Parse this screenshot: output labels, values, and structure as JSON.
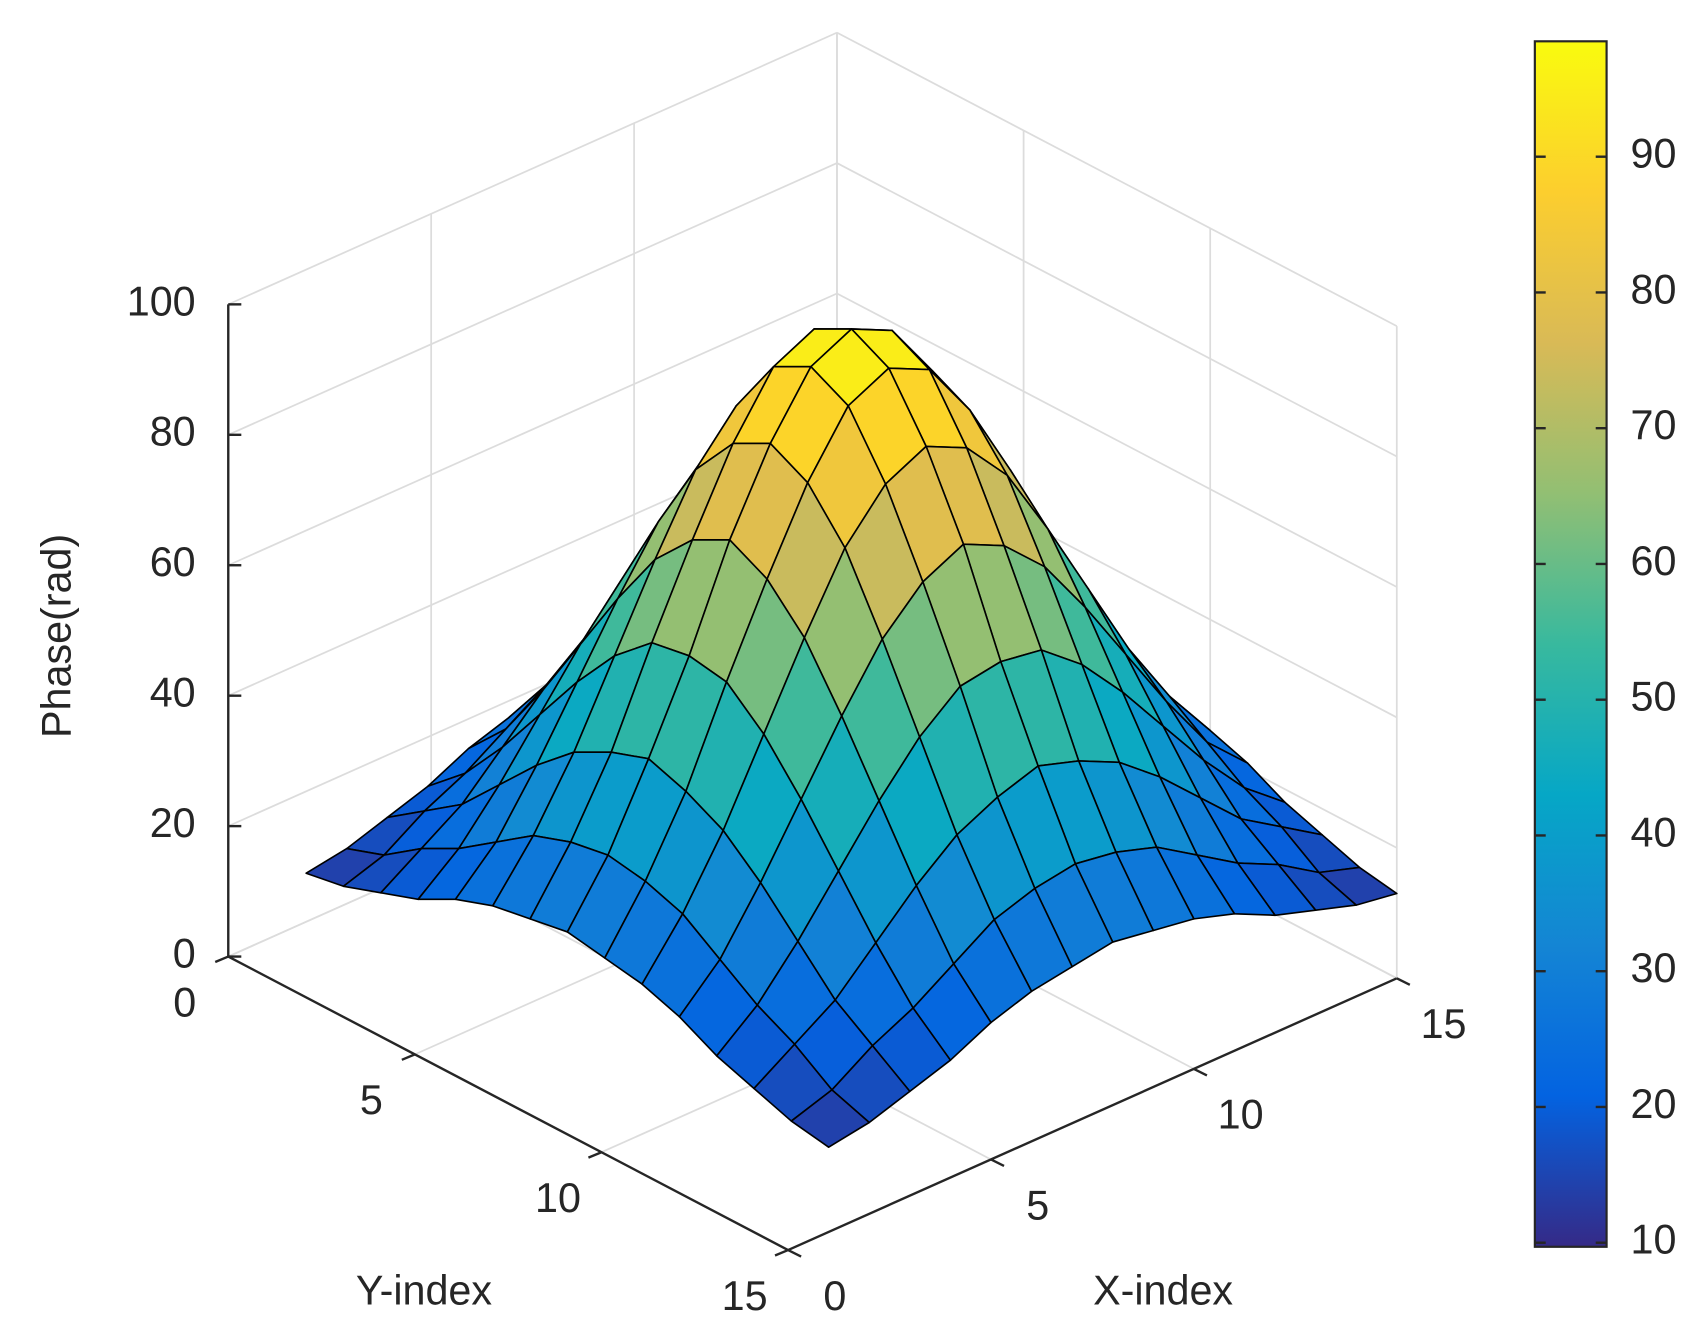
{
  "chart_data": {
    "type": "surface",
    "x": [
      1,
      2,
      3,
      4,
      5,
      6,
      7,
      8,
      9,
      10,
      11,
      12,
      13,
      14,
      15
    ],
    "y": [
      1,
      2,
      3,
      4,
      5,
      6,
      7,
      8,
      9,
      10,
      11,
      12,
      13,
      14,
      15
    ],
    "z": [
      [
        13,
        14,
        16,
        18,
        21,
        23,
        24,
        25,
        24,
        23,
        21,
        18,
        16,
        14,
        13
      ],
      [
        14,
        16,
        20,
        23,
        27,
        31,
        33,
        34,
        33,
        31,
        27,
        23,
        20,
        16,
        14
      ],
      [
        16,
        20,
        24,
        30,
        36,
        41,
        44,
        46,
        44,
        41,
        36,
        30,
        24,
        20,
        16
      ],
      [
        18,
        23,
        30,
        38,
        46,
        53,
        58,
        59,
        58,
        53,
        46,
        38,
        30,
        23,
        18
      ],
      [
        21,
        27,
        36,
        46,
        56,
        65,
        71,
        74,
        71,
        65,
        56,
        46,
        36,
        27,
        21
      ],
      [
        23,
        31,
        41,
        53,
        65,
        76,
        83,
        86,
        83,
        76,
        65,
        53,
        41,
        31,
        23
      ],
      [
        24,
        33,
        44,
        58,
        71,
        83,
        92,
        95,
        92,
        83,
        71,
        58,
        44,
        33,
        24
      ],
      [
        25,
        34,
        46,
        59,
        74,
        86,
        95,
        98,
        95,
        86,
        74,
        59,
        46,
        34,
        25
      ],
      [
        24,
        33,
        44,
        58,
        71,
        83,
        92,
        95,
        92,
        83,
        71,
        58,
        44,
        33,
        24
      ],
      [
        23,
        31,
        41,
        53,
        65,
        76,
        83,
        86,
        83,
        76,
        65,
        53,
        41,
        31,
        23
      ],
      [
        21,
        27,
        36,
        46,
        56,
        65,
        71,
        74,
        71,
        65,
        56,
        46,
        36,
        27,
        21
      ],
      [
        18,
        23,
        30,
        38,
        46,
        53,
        58,
        59,
        58,
        53,
        46,
        38,
        30,
        23,
        18
      ],
      [
        16,
        20,
        24,
        30,
        36,
        41,
        44,
        46,
        44,
        41,
        36,
        30,
        24,
        20,
        16
      ],
      [
        14,
        16,
        20,
        23,
        27,
        31,
        33,
        34,
        33,
        31,
        27,
        23,
        20,
        16,
        14
      ],
      [
        13,
        14,
        16,
        18,
        21,
        23,
        24,
        25,
        24,
        23,
        21,
        18,
        16,
        14,
        13
      ]
    ],
    "xlabel": "X-index",
    "ylabel": "Y-index",
    "zlabel": "Phase(rad)",
    "xlim": [
      0,
      15
    ],
    "xticks": [
      0,
      5,
      10,
      15
    ],
    "ylim": [
      0,
      15
    ],
    "yticks": [
      0,
      5,
      10,
      15
    ],
    "zlim": [
      0,
      100
    ],
    "zticks": [
      0,
      20,
      40,
      60,
      80,
      100
    ],
    "clim": [
      9.7,
      98.5
    ],
    "cticks": [
      10,
      20,
      30,
      40,
      50,
      60,
      70,
      80,
      90
    ],
    "colormap": [
      "#352A87",
      "#0363E1",
      "#1485D4",
      "#06A7C6",
      "#38B99E",
      "#92BF73",
      "#D9BA56",
      "#FCCE2E",
      "#F9FB0E"
    ],
    "edge_color": "#000000",
    "grid": true
  }
}
